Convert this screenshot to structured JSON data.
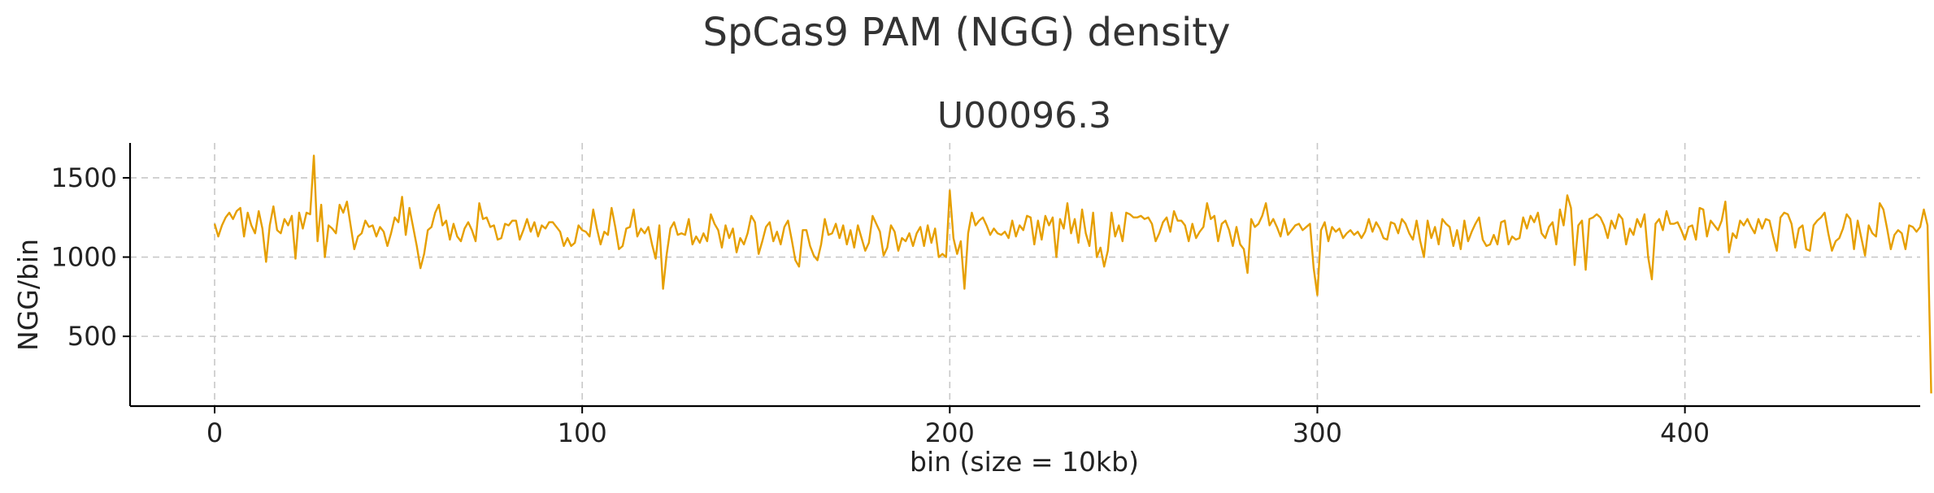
{
  "figure": {
    "suptitle": "SpCas9 PAM (NGG) density"
  },
  "chart_data": {
    "type": "line",
    "title": "U00096.3",
    "xlabel": "bin (size = 10kb)",
    "ylabel": "NGG/bin",
    "xlim": [
      -23,
      464
    ],
    "ylim": [
      60,
      1720
    ],
    "xticks": [
      0,
      100,
      200,
      300,
      400
    ],
    "yticks": [
      500,
      1000,
      1500
    ],
    "grid": true,
    "color": "#E69F00",
    "series": [
      {
        "x_start": 0,
        "x_step": 1,
        "values": [
          1210,
          1130,
          1200,
          1250,
          1280,
          1240,
          1290,
          1310,
          1130,
          1280,
          1200,
          1150,
          1290,
          1180,
          970,
          1200,
          1320,
          1170,
          1150,
          1240,
          1200,
          1260,
          990,
          1280,
          1180,
          1280,
          1270,
          1640,
          1100,
          1330,
          1000,
          1200,
          1180,
          1150,
          1330,
          1280,
          1350,
          1200,
          1050,
          1130,
          1150,
          1230,
          1190,
          1200,
          1130,
          1190,
          1160,
          1070,
          1150,
          1250,
          1220,
          1380,
          1140,
          1310,
          1190,
          1070,
          930,
          1020,
          1170,
          1190,
          1280,
          1330,
          1200,
          1230,
          1110,
          1210,
          1130,
          1100,
          1180,
          1220,
          1170,
          1100,
          1340,
          1240,
          1250,
          1190,
          1200,
          1110,
          1120,
          1210,
          1200,
          1230,
          1230,
          1110,
          1170,
          1240,
          1160,
          1220,
          1130,
          1200,
          1180,
          1220,
          1220,
          1190,
          1160,
          1070,
          1120,
          1070,
          1090,
          1200,
          1170,
          1160,
          1130,
          1300,
          1180,
          1080,
          1160,
          1140,
          1310,
          1190,
          1050,
          1070,
          1180,
          1190,
          1300,
          1130,
          1180,
          1150,
          1190,
          1080,
          990,
          1200,
          800,
          1020,
          1180,
          1220,
          1140,
          1150,
          1140,
          1240,
          1080,
          1130,
          1090,
          1150,
          1100,
          1270,
          1210,
          1170,
          1060,
          1200,
          1120,
          1180,
          1030,
          1120,
          1080,
          1150,
          1260,
          1220,
          1020,
          1100,
          1190,
          1220,
          1100,
          1160,
          1080,
          1190,
          1230,
          1110,
          980,
          940,
          1170,
          1170,
          1070,
          1010,
          980,
          1080,
          1240,
          1140,
          1150,
          1210,
          1120,
          1200,
          1080,
          1170,
          1060,
          1200,
          1120,
          1040,
          1090,
          1260,
          1210,
          1160,
          1010,
          1060,
          1200,
          1160,
          1040,
          1120,
          1100,
          1150,
          1070,
          1150,
          1190,
          1070,
          1200,
          1090,
          1180,
          1000,
          1020,
          1000,
          1420,
          1120,
          1020,
          1100,
          800,
          1150,
          1280,
          1200,
          1230,
          1250,
          1200,
          1140,
          1180,
          1150,
          1140,
          1160,
          1120,
          1230,
          1130,
          1200,
          1170,
          1260,
          1250,
          1080,
          1230,
          1110,
          1260,
          1200,
          1250,
          1000,
          1240,
          1180,
          1340,
          1150,
          1240,
          1090,
          1300,
          1150,
          1070,
          1280,
          1000,
          1060,
          940,
          1040,
          1280,
          1130,
          1200,
          1100,
          1280,
          1270,
          1250,
          1250,
          1260,
          1240,
          1250,
          1210,
          1100,
          1150,
          1220,
          1250,
          1160,
          1290,
          1230,
          1230,
          1200,
          1100,
          1210,
          1120,
          1160,
          1190,
          1340,
          1240,
          1260,
          1100,
          1210,
          1230,
          1170,
          1070,
          1190,
          1080,
          1050,
          900,
          1240,
          1190,
          1210,
          1260,
          1340,
          1200,
          1240,
          1190,
          1130,
          1240,
          1140,
          1170,
          1200,
          1210,
          1170,
          1190,
          1210,
          930,
          760,
          1170,
          1220,
          1100,
          1190,
          1160,
          1180,
          1120,
          1150,
          1170,
          1140,
          1160,
          1120,
          1160,
          1240,
          1160,
          1220,
          1180,
          1120,
          1110,
          1220,
          1210,
          1150,
          1240,
          1210,
          1150,
          1110,
          1230,
          1100,
          1000,
          1230,
          1120,
          1190,
          1080,
          1240,
          1210,
          1190,
          1070,
          1170,
          1050,
          1230,
          1100,
          1160,
          1210,
          1250,
          1110,
          1070,
          1080,
          1140,
          1080,
          1220,
          1230,
          1080,
          1130,
          1110,
          1120,
          1250,
          1180,
          1260,
          1220,
          1280,
          1150,
          1120,
          1190,
          1220,
          1080,
          1300,
          1200,
          1390,
          1310,
          950,
          1200,
          1230,
          920,
          1240,
          1250,
          1270,
          1250,
          1200,
          1120,
          1230,
          1180,
          1270,
          1240,
          1080,
          1180,
          1140,
          1240,
          1190,
          1270,
          1000,
          860,
          1210,
          1240,
          1170,
          1290,
          1210,
          1210,
          1220,
          1170,
          1110,
          1190,
          1200,
          1110,
          1310,
          1300,
          1130,
          1230,
          1200,
          1170,
          1230,
          1350,
          1030,
          1150,
          1120,
          1230,
          1200,
          1240,
          1190,
          1150,
          1240,
          1180,
          1240,
          1230,
          1130,
          1040,
          1250,
          1280,
          1270,
          1210,
          1060,
          1180,
          1200,
          1050,
          1040,
          1200,
          1230,
          1250,
          1280,
          1150,
          1040,
          1100,
          1120,
          1180,
          1270,
          1240,
          1050,
          1230,
          1120,
          1010,
          1200,
          1150,
          1130,
          1340,
          1300,
          1180,
          1050,
          1140,
          1170,
          1150,
          1050,
          1200,
          1190,
          1160,
          1190,
          1300,
          1200,
          140
        ]
      }
    ]
  }
}
